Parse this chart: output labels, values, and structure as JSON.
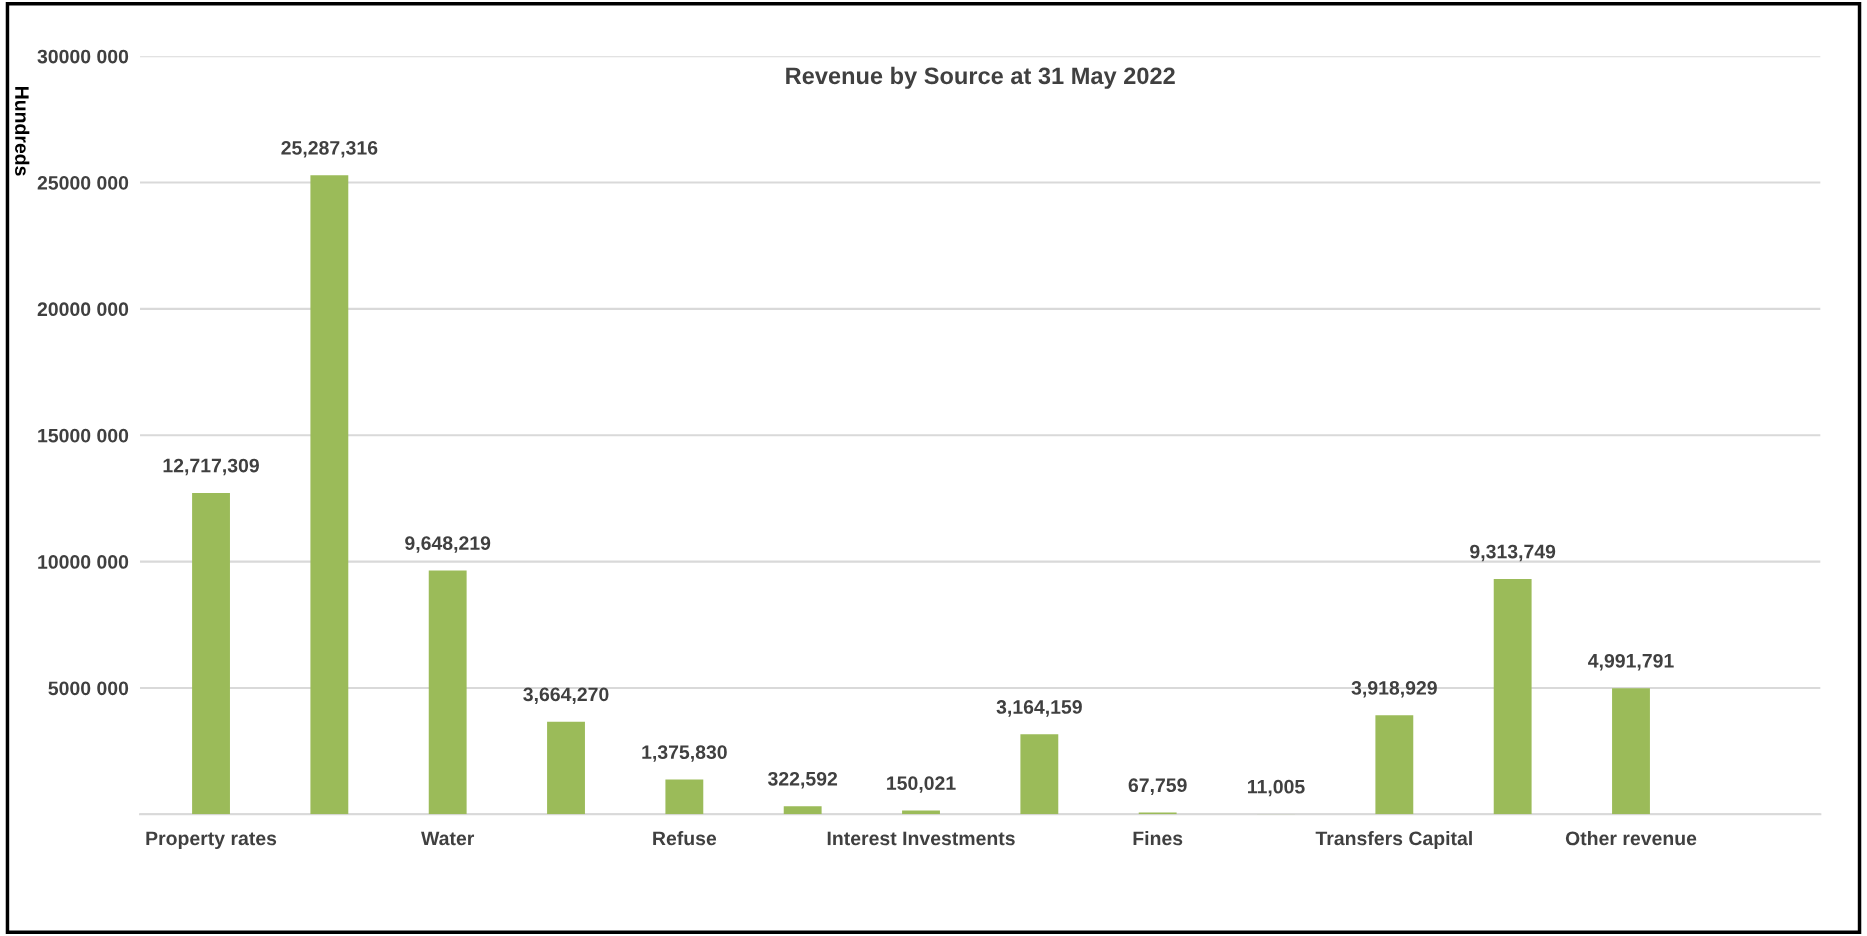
{
  "chart_data": {
    "type": "bar",
    "title": "Revenue by Source at 31 May 2022",
    "ylabel": "Hundreds",
    "categories": [
      "Property rates",
      null,
      "Water",
      null,
      "Refuse",
      null,
      "Interest Investments",
      null,
      "Fines",
      null,
      "Transfers Capital",
      null,
      "Other revenue"
    ],
    "values": [
      12717309,
      25287316,
      9648219,
      3664270,
      1375830,
      322592,
      150021,
      3164159,
      67759,
      11005,
      3918929,
      9313749,
      4991791
    ],
    "value_labels": [
      "12,717,309",
      "25,287,316",
      "9,648,219",
      "3,664,270",
      "1,375,830",
      "322,592",
      "150,021",
      "3,164,159",
      "67,759",
      "11,005",
      "3,918,929",
      "9,313,749",
      "4,991,791"
    ],
    "color": "#9bbb59",
    "ylim": [
      0,
      30000000
    ],
    "yticks": [
      {
        "value": 0,
        "label": null
      },
      {
        "value": 5000000,
        "label": "5000 000"
      },
      {
        "value": 10000000,
        "label": "10000 000"
      },
      {
        "value": 15000000,
        "label": "15000 000"
      },
      {
        "value": 20000000,
        "label": "20000 000"
      },
      {
        "value": 25000000,
        "label": "25000 000"
      },
      {
        "value": 30000000,
        "label": "30000 000"
      }
    ],
    "grid": "y"
  }
}
